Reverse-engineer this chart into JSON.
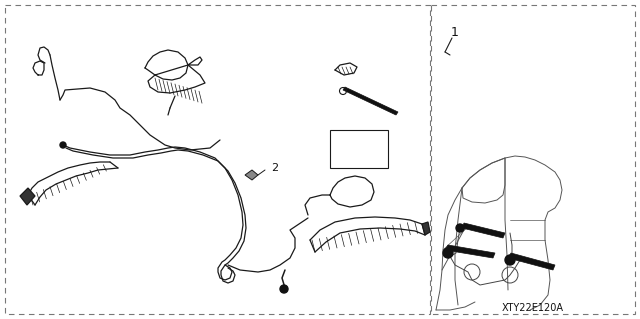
{
  "bg_color": "#ffffff",
  "line_color": "#1a1a1a",
  "dark_color": "#111111",
  "gray_color": "#555555",
  "label_1": "1",
  "label_2": "2",
  "image_code": "XTY22E120A",
  "fig_width": 6.4,
  "fig_height": 3.19,
  "dpi": 100
}
